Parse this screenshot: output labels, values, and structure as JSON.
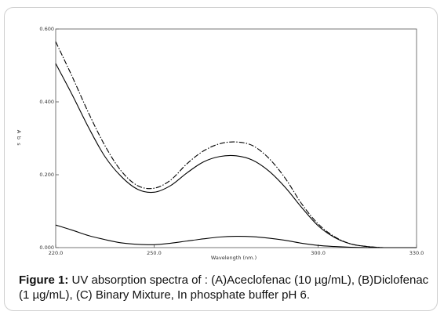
{
  "caption": {
    "label": "Figure 1:",
    "text": " UV absorption spectra of : (A)Aceclofenac (10 µg/mL), (B)Diclofenac (1 µg/mL), (C) Binary Mixture, In phosphate buffer pH 6."
  },
  "chart_data": {
    "type": "line",
    "xlabel": "Wavelength (nm.)",
    "ylabel": "Abs",
    "xlim": [
      220,
      330
    ],
    "ylim": [
      0,
      0.6
    ],
    "x_ticks": [
      "220.0",
      "250.0",
      "300.0",
      "330.0"
    ],
    "x_tick_values": [
      220,
      250,
      300,
      330
    ],
    "y_ticks": [
      "0.000",
      "0.200",
      "0.400",
      "0.600"
    ],
    "y_tick_values": [
      0,
      0.2,
      0.4,
      0.6
    ],
    "grid": false,
    "series": [
      {
        "style": "dashed",
        "color": "#000000",
        "x": [
          220,
          225,
          230,
          235,
          240,
          245,
          250,
          255,
          260,
          265,
          270,
          275,
          280,
          285,
          290,
          295,
          300,
          305,
          310,
          315,
          320,
          325,
          330
        ],
        "y": [
          0.565,
          0.47,
          0.37,
          0.28,
          0.21,
          0.17,
          0.163,
          0.185,
          0.23,
          0.265,
          0.285,
          0.29,
          0.28,
          0.245,
          0.19,
          0.12,
          0.065,
          0.03,
          0.01,
          0.003,
          0.0,
          0.0,
          0.0
        ]
      },
      {
        "style": "solid",
        "color": "#000000",
        "x": [
          220,
          225,
          230,
          235,
          240,
          245,
          250,
          255,
          260,
          265,
          270,
          275,
          280,
          285,
          290,
          295,
          300,
          305,
          310,
          315,
          320,
          325,
          330
        ],
        "y": [
          0.505,
          0.42,
          0.33,
          0.25,
          0.195,
          0.16,
          0.152,
          0.17,
          0.205,
          0.235,
          0.25,
          0.252,
          0.24,
          0.21,
          0.165,
          0.11,
          0.06,
          0.028,
          0.01,
          0.003,
          0.0,
          0.0,
          0.0
        ]
      },
      {
        "style": "solid",
        "color": "#000000",
        "x": [
          220,
          225,
          230,
          235,
          240,
          245,
          250,
          255,
          260,
          265,
          270,
          275,
          280,
          285,
          290,
          295,
          300,
          305,
          310,
          315,
          320,
          325,
          330
        ],
        "y": [
          0.062,
          0.048,
          0.033,
          0.022,
          0.013,
          0.009,
          0.008,
          0.012,
          0.018,
          0.024,
          0.029,
          0.031,
          0.03,
          0.026,
          0.02,
          0.012,
          0.006,
          0.003,
          0.001,
          0.0,
          0.0,
          0.0,
          0.0
        ]
      }
    ]
  }
}
